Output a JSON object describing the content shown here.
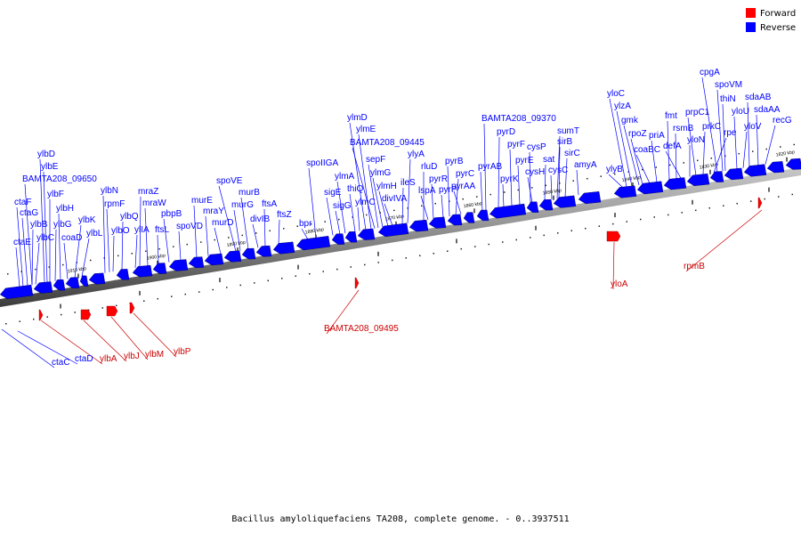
{
  "legend": {
    "forward_label": "Forward",
    "reverse_label": "Reverse",
    "forward_color": "#ff0000",
    "reverse_color": "#0000ff"
  },
  "caption": "Bacillus amyloliquefaciens TA208, complete genome. - 0..3937511",
  "ticks": [
    "1820 kbp",
    "1830 kbp",
    "1840 kbp",
    "1850 kbp",
    "1860 kbp",
    "1870 kbp",
    "1880 kbp",
    "1890 kbp",
    "1900 kbp",
    "1910 kbp"
  ],
  "reverse_genes": [
    "ctaE",
    "ctaF",
    "ctaG",
    "ylbB",
    "ylbC",
    "BAMTA208_09650",
    "ylbD",
    "ylbE",
    "ylbF",
    "ylbG",
    "ylbH",
    "coaD",
    "ylbK",
    "ylbL",
    "ylbN",
    "rpmF",
    "ylbO",
    "ylbQ",
    "ylIA",
    "mraZ",
    "mraW",
    "ftsL",
    "pbpB",
    "spoVD",
    "murE",
    "mraY",
    "murD",
    "spoVE",
    "murG",
    "murB",
    "divIB",
    "ftsA",
    "ftsZ",
    "bpr",
    "spoIIGA",
    "sigE",
    "sigG",
    "ylmA",
    "thiQ",
    "ylmC",
    "ylmD",
    "ylmE",
    "BAMTA208_09445",
    "sepF",
    "ylmG",
    "ylmH",
    "divIVA",
    "ileS",
    "ylyA",
    "rluD",
    "lspA",
    "pyrR",
    "pyrP",
    "pyrB",
    "pyrC",
    "pyrAA",
    "pyrAB",
    "pyrK",
    "BAMTA208_09370",
    "pyrD",
    "pyrF",
    "pyrE",
    "cysP",
    "cysH",
    "sat",
    "sumT",
    "sirB",
    "sirC",
    "cysC",
    "amyA",
    "ylyB",
    "yloC",
    "ylzA",
    "gmk",
    "rpoZ",
    "coaBC",
    "priA",
    "fmt",
    "rsmB",
    "defA",
    "yloN",
    "prpC1",
    "prkC",
    "rpe",
    "cpgA",
    "spoVM",
    "thiN",
    "yloU",
    "yloV",
    "sdaAB",
    "sdaAA",
    "recG",
    "ctaC",
    "ctaD"
  ],
  "forward_genes": [
    "ylbA",
    "ylbJ",
    "ylbM",
    "ylbP",
    "BAMTA208_09495",
    "yloA",
    "rpmB"
  ]
}
